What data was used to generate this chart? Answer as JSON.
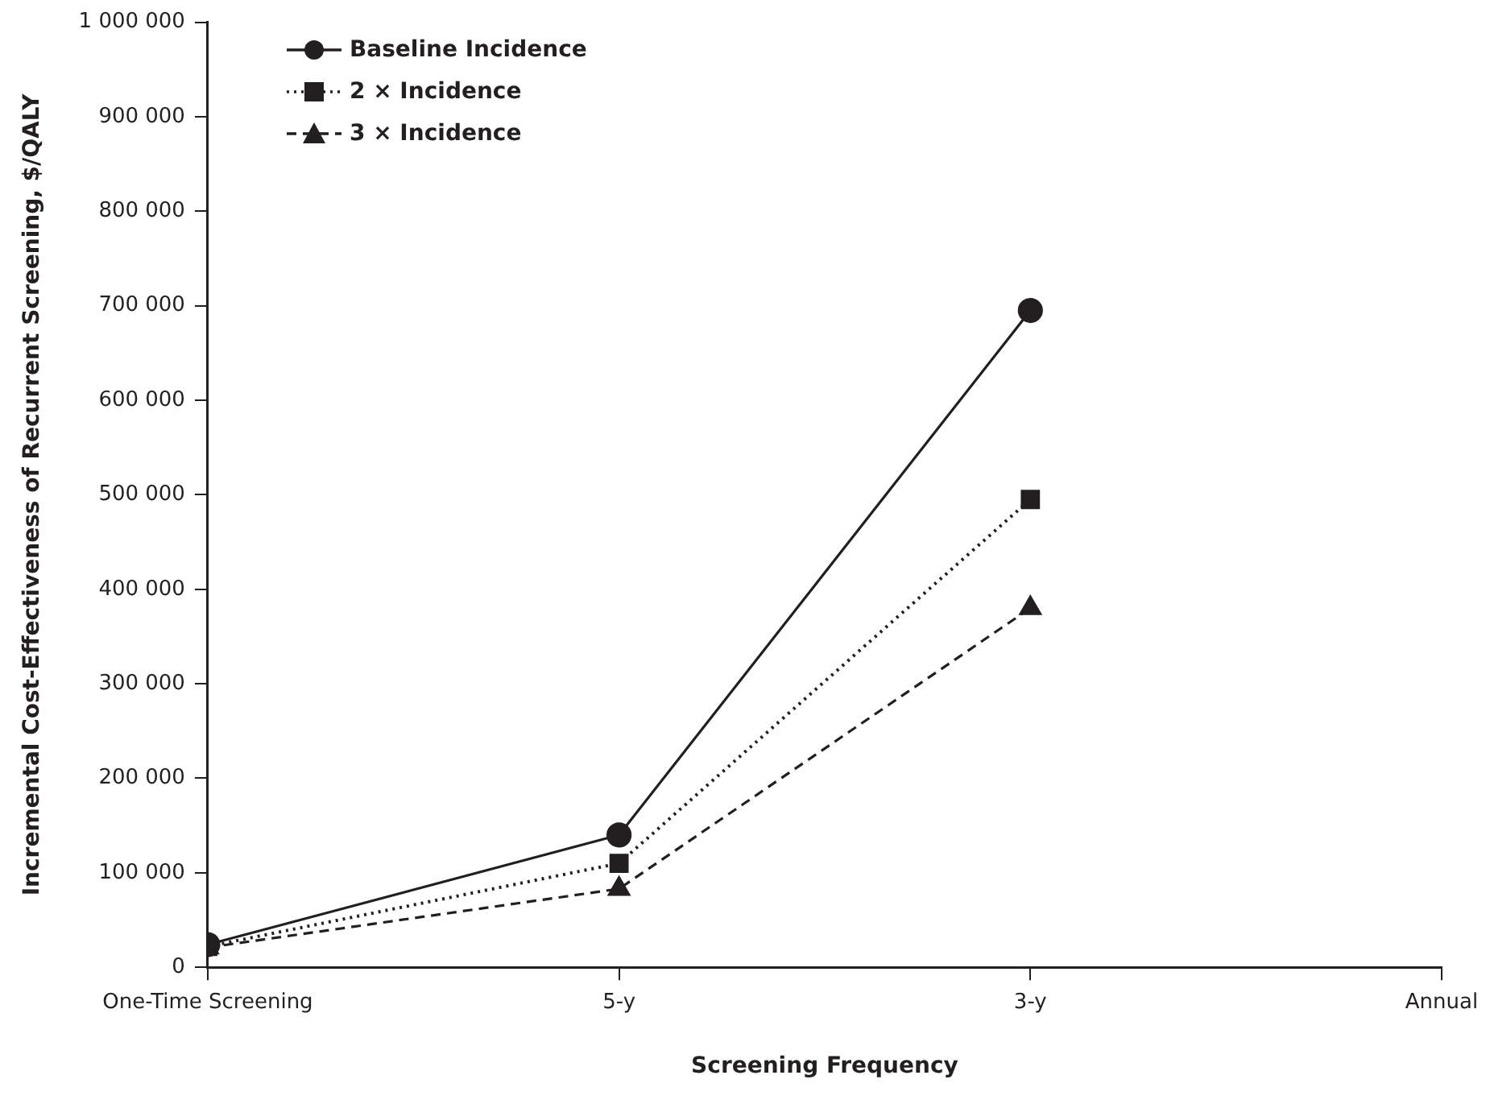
{
  "chart_data": {
    "type": "line",
    "xlabel": "Screening Frequency",
    "ylabel": "Incremental Cost-Effectiveness of Recurrent Screening, $/QALY",
    "categories": [
      "One-Time Screening",
      "5-y",
      "3-y",
      "Annual"
    ],
    "ylim": [
      0,
      1000000
    ],
    "yticks": [
      {
        "value": 0,
        "label": "0"
      },
      {
        "value": 100000,
        "label": "100 000"
      },
      {
        "value": 200000,
        "label": "200 000"
      },
      {
        "value": 300000,
        "label": "300 000"
      },
      {
        "value": 400000,
        "label": "400 000"
      },
      {
        "value": 500000,
        "label": "500 000"
      },
      {
        "value": 600000,
        "label": "600 000"
      },
      {
        "value": 700000,
        "label": "700 000"
      },
      {
        "value": 800000,
        "label": "800 000"
      },
      {
        "value": 900000,
        "label": "900 000"
      },
      {
        "value": 1000000,
        "label": "1 000 000"
      }
    ],
    "grid": false,
    "legend": "top left",
    "series": [
      {
        "name": "Baseline Incidence",
        "color": "#231f20",
        "marker": "circle",
        "line_style": "solid",
        "values": [
          24000,
          140000,
          695000,
          null
        ]
      },
      {
        "name": "2 × Incidence",
        "color": "#231f20",
        "marker": "square",
        "line_style": "dotted",
        "values": [
          22000,
          110000,
          495000,
          null
        ]
      },
      {
        "name": "3 × Incidence",
        "color": "#231f20",
        "marker": "triangle",
        "line_style": "dashed",
        "values": [
          21000,
          83000,
          380000,
          null
        ]
      }
    ]
  }
}
